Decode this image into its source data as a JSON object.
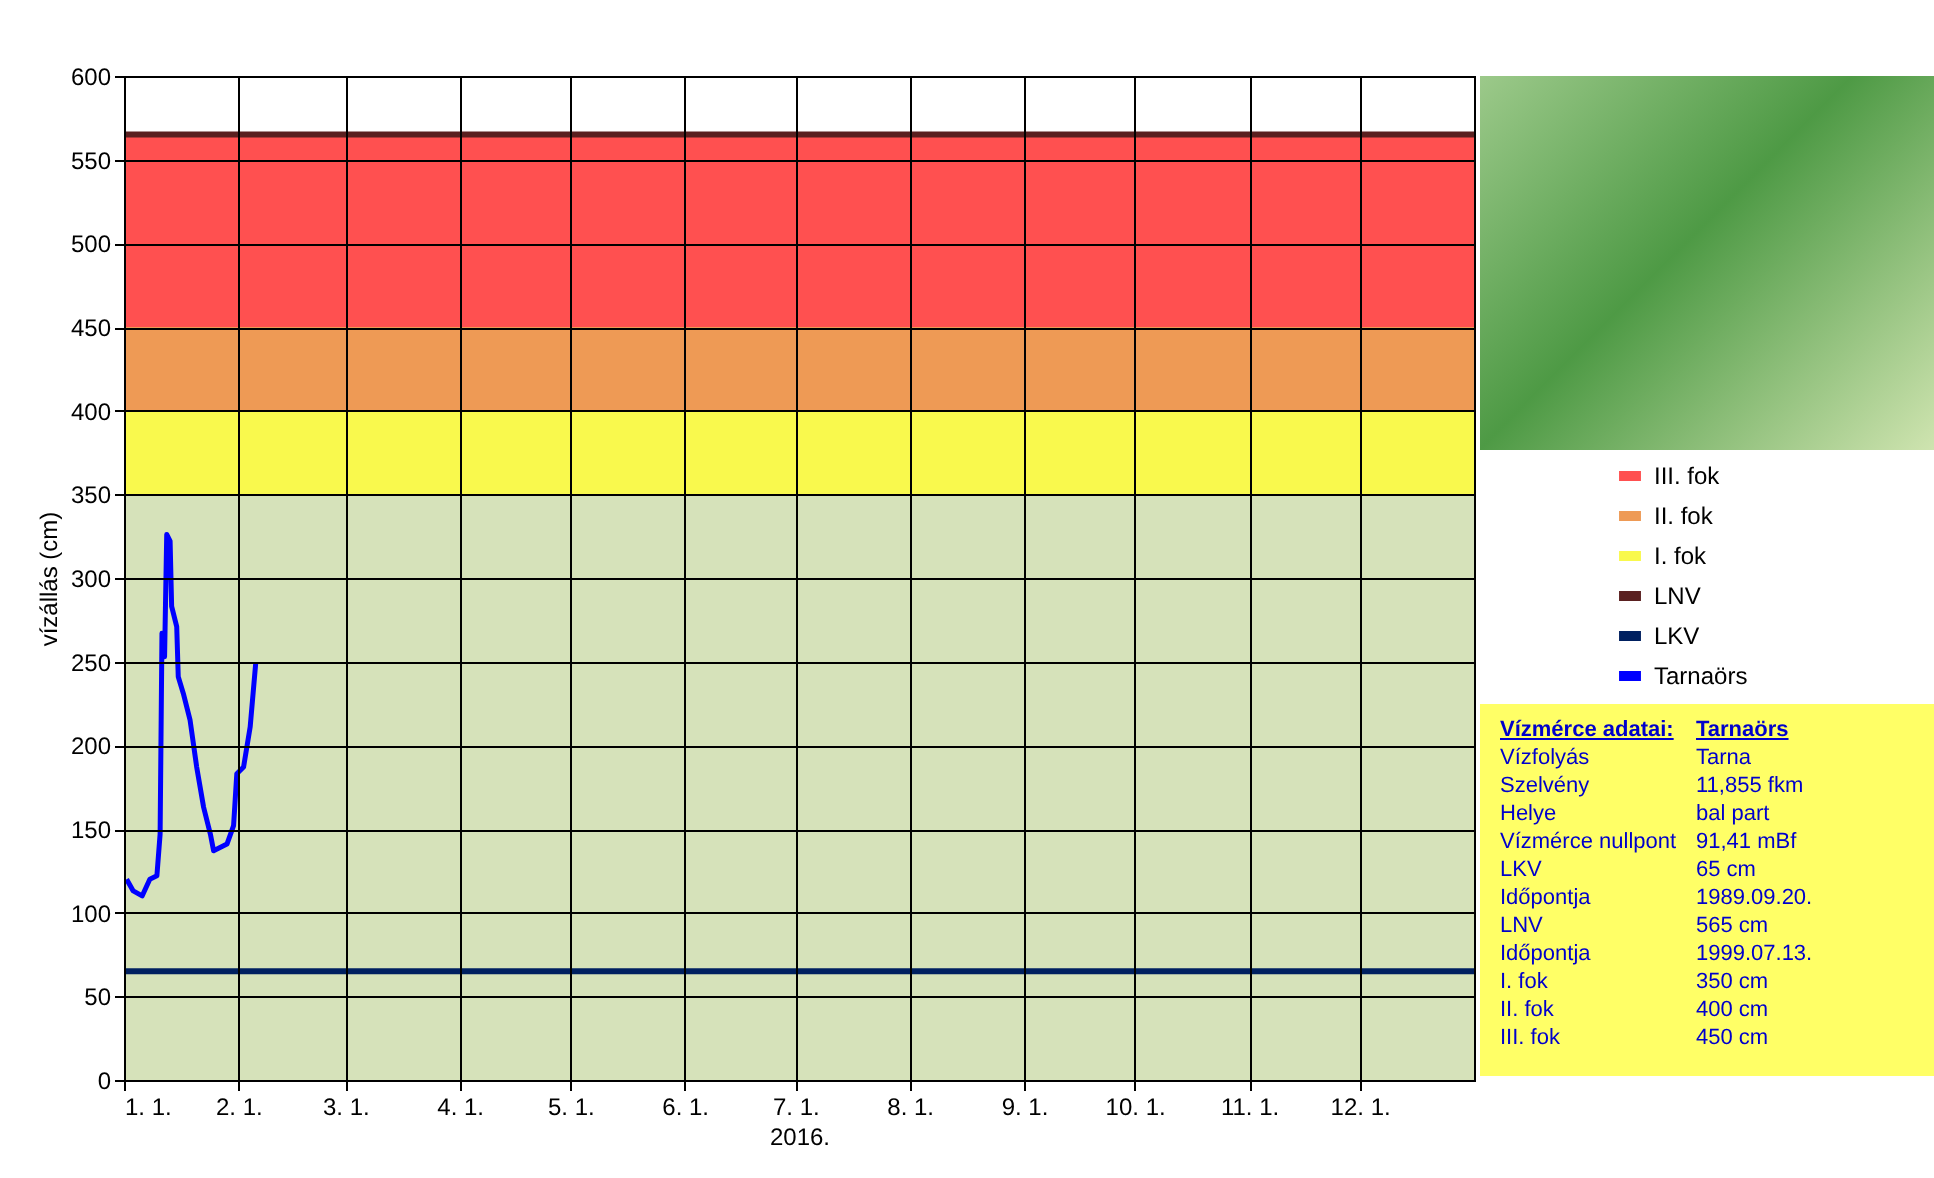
{
  "chart_data": {
    "type": "line",
    "ylabel": "vízállás (cm)",
    "xlabel": "2016.",
    "xlim": [
      "2016-01-01",
      "2017-01-01"
    ],
    "xticks": [
      {
        "value": "2016-01-01",
        "label": "1. 1."
      },
      {
        "value": "2016-02-01",
        "label": "2. 1."
      },
      {
        "value": "2016-03-01",
        "label": "3. 1."
      },
      {
        "value": "2016-04-01",
        "label": "4. 1."
      },
      {
        "value": "2016-05-01",
        "label": "5. 1."
      },
      {
        "value": "2016-06-01",
        "label": "6. 1."
      },
      {
        "value": "2016-07-01",
        "label": "7. 1."
      },
      {
        "value": "2016-08-01",
        "label": "8. 1."
      },
      {
        "value": "2016-09-01",
        "label": "9. 1."
      },
      {
        "value": "2016-10-01",
        "label": "10. 1."
      },
      {
        "value": "2016-11-01",
        "label": "11. 1."
      },
      {
        "value": "2016-12-01",
        "label": "12. 1."
      }
    ],
    "ylim": [
      0,
      600
    ],
    "yticks": [
      0,
      50,
      100,
      150,
      200,
      250,
      300,
      350,
      400,
      450,
      500,
      550,
      600
    ],
    "grid": true,
    "legend": "right",
    "line_style": "solid",
    "bands": [
      {
        "axis": "y",
        "from": 450,
        "to": 565,
        "label": "III. fok",
        "color": "#ff5050"
      },
      {
        "axis": "y",
        "from": 400,
        "to": 450,
        "label": "II. fok",
        "color": "#ee9a55"
      },
      {
        "axis": "y",
        "from": 350,
        "to": 400,
        "label": "I. fok",
        "color": "#f9f94d"
      },
      {
        "axis": "y",
        "from": 0,
        "to": 350,
        "color": "#d6e2ba"
      }
    ],
    "ref_lines": [
      {
        "axis": "y",
        "value": 565,
        "label": "LNV",
        "color": "#5a2020"
      },
      {
        "axis": "y",
        "value": 65,
        "label": "LKV",
        "color": "#002060"
      }
    ],
    "series": [
      {
        "name": "Tarnaörs",
        "color": "#0000ff",
        "x": [
          "2016-01-01T17:00",
          "2016-01-03T12:00",
          "2016-01-05T22:00",
          "2016-01-08",
          "2016-01-09T22:00",
          "2016-01-10T19:00",
          "2016-01-11T07:00",
          "2016-01-12",
          "2016-01-12T14:00",
          "2016-01-13T12:00",
          "2016-01-13T22:00",
          "2016-01-15T07:00",
          "2016-01-15T17:00",
          "2016-01-17T02:00",
          "2016-01-18T22:00",
          "2016-01-20T17:00",
          "2016-01-22T14:00",
          "2016-01-24T10:00",
          "2016-01-25T07:00",
          "2016-01-28T22:00",
          "2016-01-30T17:00",
          "2016-01-31T14:00",
          "2016-02-02T10:00",
          "2016-02-04T05:00",
          "2016-02-05T17:00"
        ],
        "values": [
          120,
          113,
          110,
          120,
          122,
          147,
          267,
          253,
          326,
          322,
          283,
          271,
          241,
          231,
          215,
          187,
          163,
          147,
          137,
          141,
          152,
          183,
          187,
          211,
          249
        ]
      }
    ],
    "annotations": [
      "Vízmérce adatai:",
      "Tarnaörs",
      "Vízfolyás",
      "Tarna",
      "Szelvény",
      "11,855 fkm",
      "Helye",
      "bal part",
      "Vízmérce nullpont",
      "91,41 mBf",
      "LKV",
      "65 cm",
      "Időpontja",
      "1989.09.20.",
      "LNV",
      "565 cm",
      "Időpontja",
      "1999.07.13.",
      "I. fok",
      "350 cm",
      "II. fok",
      "400 cm",
      "III. fok",
      "450 cm"
    ]
  }
}
